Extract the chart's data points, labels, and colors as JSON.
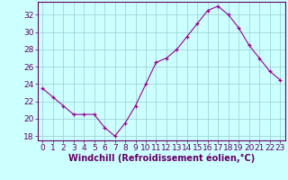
{
  "x": [
    0,
    1,
    2,
    3,
    4,
    5,
    6,
    7,
    8,
    9,
    10,
    11,
    12,
    13,
    14,
    15,
    16,
    17,
    18,
    19,
    20,
    21,
    22,
    23
  ],
  "y": [
    23.5,
    22.5,
    21.5,
    20.5,
    20.5,
    20.5,
    19.0,
    18.0,
    19.5,
    21.5,
    24.0,
    26.5,
    27.0,
    28.0,
    29.5,
    31.0,
    32.5,
    33.0,
    32.0,
    30.5,
    28.5,
    27.0,
    25.5,
    24.5
  ],
  "line_color": "#990099",
  "marker": "+",
  "marker_color": "#990099",
  "bg_color": "#ccffff",
  "grid_color": "#99cccc",
  "xlabel": "Windchill (Refroidissement éolien,°C)",
  "xlabel_color": "#660066",
  "tick_color": "#660066",
  "axis_color": "#660066",
  "ylim": [
    17.5,
    33.5
  ],
  "yticks": [
    18,
    20,
    22,
    24,
    26,
    28,
    30,
    32
  ],
  "xticks": [
    0,
    1,
    2,
    3,
    4,
    5,
    6,
    7,
    8,
    9,
    10,
    11,
    12,
    13,
    14,
    15,
    16,
    17,
    18,
    19,
    20,
    21,
    22,
    23
  ],
  "font_size": 6.5,
  "xlabel_font_size": 7.0,
  "linewidth": 0.8,
  "markersize": 3.5
}
